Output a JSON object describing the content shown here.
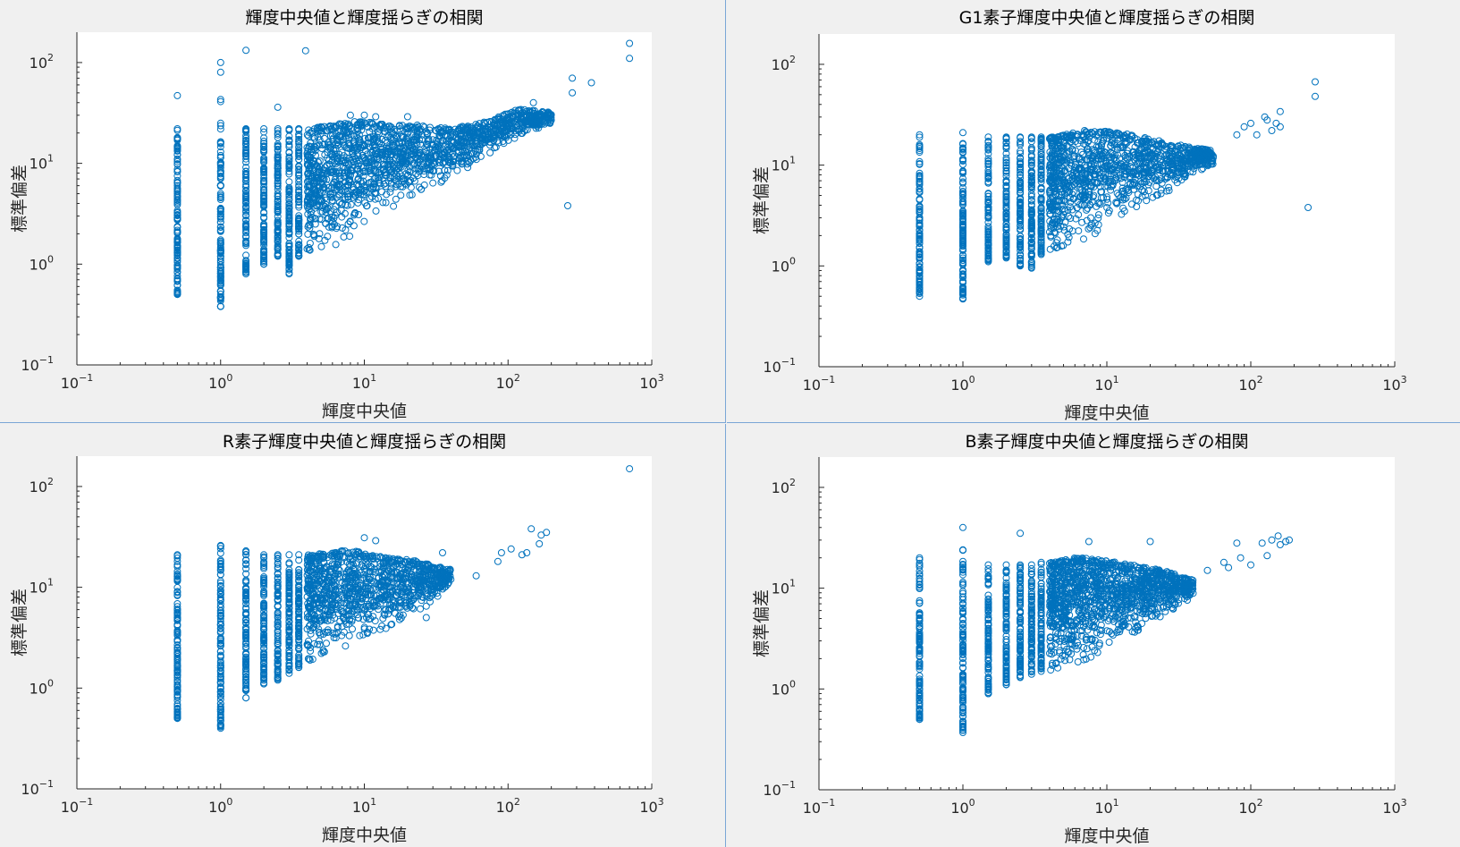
{
  "style": {
    "marker_color": "#0072bd",
    "plot_background": "#ffffff",
    "figure_background": "#f0f0f0"
  },
  "chart_data": [
    {
      "type": "scatter",
      "title": "輝度中央値と輝度揺らぎの相関",
      "xlabel": "輝度中央値",
      "ylabel": "標準偏差",
      "xscale": "log",
      "yscale": "log",
      "xlim": [
        0.1,
        1000
      ],
      "ylim": [
        0.1,
        200
      ],
      "grid": false,
      "x_ticks": [
        {
          "base": "10",
          "exp": "−1"
        },
        {
          "base": "10",
          "exp": "0"
        },
        {
          "base": "10",
          "exp": "1"
        },
        {
          "base": "10",
          "exp": "2"
        },
        {
          "base": "10",
          "exp": "3"
        }
      ],
      "y_ticks": [
        {
          "base": "10",
          "exp": "−1"
        },
        {
          "base": "10",
          "exp": "0"
        },
        {
          "base": "10",
          "exp": "1"
        },
        {
          "base": "10",
          "exp": "2"
        }
      ],
      "columns": [
        {
          "x": 0.5,
          "ymin": 0.5,
          "ymax": 22
        },
        {
          "x": 1.0,
          "ymin": 0.38,
          "ymax": 25
        },
        {
          "x": 1.5,
          "ymin": 0.8,
          "ymax": 22
        },
        {
          "x": 2.0,
          "ymin": 1.0,
          "ymax": 22
        },
        {
          "x": 2.5,
          "ymin": 1.2,
          "ymax": 22
        },
        {
          "x": 3.0,
          "ymin": 0.8,
          "ymax": 22
        },
        {
          "x": 3.5,
          "ymin": 1.2,
          "ymax": 22
        }
      ],
      "cloud": [
        {
          "x": 4,
          "ymin": 1.3,
          "ymax": 22
        },
        {
          "x": 6,
          "ymin": 1.5,
          "ymax": 24
        },
        {
          "x": 8,
          "ymin": 1.8,
          "ymax": 26
        },
        {
          "x": 10,
          "ymin": 2.5,
          "ymax": 26
        },
        {
          "x": 15,
          "ymin": 3.5,
          "ymax": 24
        },
        {
          "x": 25,
          "ymin": 5,
          "ymax": 24
        },
        {
          "x": 40,
          "ymin": 7,
          "ymax": 22
        },
        {
          "x": 70,
          "ymin": 12,
          "ymax": 26
        },
        {
          "x": 120,
          "ymin": 18,
          "ymax": 35
        },
        {
          "x": 200,
          "ymin": 25,
          "ymax": 32
        }
      ],
      "cloud_count": 1600,
      "points": [
        {
          "x": 0.5,
          "y": 47
        },
        {
          "x": 1.0,
          "y": 100
        },
        {
          "x": 1.0,
          "y": 80
        },
        {
          "x": 1.0,
          "y": 43
        },
        {
          "x": 1.0,
          "y": 41
        },
        {
          "x": 1.5,
          "y": 132
        },
        {
          "x": 3.9,
          "y": 131
        },
        {
          "x": 2.5,
          "y": 36
        },
        {
          "x": 8,
          "y": 30
        },
        {
          "x": 10,
          "y": 30
        },
        {
          "x": 12,
          "y": 29
        },
        {
          "x": 20,
          "y": 29
        },
        {
          "x": 260,
          "y": 3.8
        },
        {
          "x": 280,
          "y": 70
        },
        {
          "x": 280,
          "y": 50
        },
        {
          "x": 380,
          "y": 63
        },
        {
          "x": 700,
          "y": 155
        },
        {
          "x": 700,
          "y": 110
        },
        {
          "x": 150,
          "y": 40
        },
        {
          "x": 130,
          "y": 34
        }
      ]
    },
    {
      "type": "scatter",
      "title": "G1素子輝度中央値と輝度揺らぎの相関",
      "xlabel": "輝度中央値",
      "ylabel": "標準偏差",
      "xscale": "log",
      "yscale": "log",
      "xlim": [
        0.1,
        1000
      ],
      "ylim": [
        0.1,
        200
      ],
      "grid": false,
      "x_ticks": [
        {
          "base": "10",
          "exp": "−1"
        },
        {
          "base": "10",
          "exp": "0"
        },
        {
          "base": "10",
          "exp": "1"
        },
        {
          "base": "10",
          "exp": "2"
        },
        {
          "base": "10",
          "exp": "3"
        }
      ],
      "y_ticks": [
        {
          "base": "10",
          "exp": "−1"
        },
        {
          "base": "10",
          "exp": "0"
        },
        {
          "base": "10",
          "exp": "1"
        },
        {
          "base": "10",
          "exp": "2"
        }
      ],
      "columns": [
        {
          "x": 0.5,
          "ymin": 0.5,
          "ymax": 20
        },
        {
          "x": 1.0,
          "ymin": 0.47,
          "ymax": 21
        },
        {
          "x": 1.5,
          "ymin": 1.1,
          "ymax": 19
        },
        {
          "x": 2.0,
          "ymin": 1.2,
          "ymax": 19
        },
        {
          "x": 2.5,
          "ymin": 1.0,
          "ymax": 19
        },
        {
          "x": 3.0,
          "ymin": 0.95,
          "ymax": 19
        },
        {
          "x": 3.5,
          "ymin": 1.3,
          "ymax": 19
        }
      ],
      "cloud": [
        {
          "x": 4,
          "ymin": 1.4,
          "ymax": 19
        },
        {
          "x": 6,
          "ymin": 1.7,
          "ymax": 21
        },
        {
          "x": 8,
          "ymin": 2.0,
          "ymax": 22
        },
        {
          "x": 10,
          "ymin": 2.6,
          "ymax": 22
        },
        {
          "x": 15,
          "ymin": 3.5,
          "ymax": 20
        },
        {
          "x": 25,
          "ymin": 5,
          "ymax": 17
        },
        {
          "x": 40,
          "ymin": 8,
          "ymax": 15
        },
        {
          "x": 55,
          "ymin": 10,
          "ymax": 14
        }
      ],
      "cloud_count": 1200,
      "points": [
        {
          "x": 7,
          "y": 22
        },
        {
          "x": 13,
          "y": 19
        },
        {
          "x": 50,
          "y": 14
        },
        {
          "x": 80,
          "y": 20
        },
        {
          "x": 90,
          "y": 24
        },
        {
          "x": 100,
          "y": 26
        },
        {
          "x": 110,
          "y": 20
        },
        {
          "x": 125,
          "y": 30
        },
        {
          "x": 130,
          "y": 28
        },
        {
          "x": 140,
          "y": 22
        },
        {
          "x": 150,
          "y": 26
        },
        {
          "x": 160,
          "y": 34
        },
        {
          "x": 160,
          "y": 24
        },
        {
          "x": 250,
          "y": 3.8
        },
        {
          "x": 280,
          "y": 67
        },
        {
          "x": 280,
          "y": 48
        }
      ]
    },
    {
      "type": "scatter",
      "title": "R素子輝度中央値と輝度揺らぎの相関",
      "xlabel": "輝度中央値",
      "ylabel": "標準偏差",
      "xscale": "log",
      "yscale": "log",
      "xlim": [
        0.1,
        1000
      ],
      "ylim": [
        0.1,
        200
      ],
      "grid": false,
      "x_ticks": [
        {
          "base": "10",
          "exp": "−1"
        },
        {
          "base": "10",
          "exp": "0"
        },
        {
          "base": "10",
          "exp": "1"
        },
        {
          "base": "10",
          "exp": "2"
        },
        {
          "base": "10",
          "exp": "3"
        }
      ],
      "y_ticks": [
        {
          "base": "10",
          "exp": "−1"
        },
        {
          "base": "10",
          "exp": "0"
        },
        {
          "base": "10",
          "exp": "1"
        },
        {
          "base": "10",
          "exp": "2"
        }
      ],
      "columns": [
        {
          "x": 0.5,
          "ymin": 0.5,
          "ymax": 21
        },
        {
          "x": 1.0,
          "ymin": 0.4,
          "ymax": 26
        },
        {
          "x": 1.5,
          "ymin": 0.8,
          "ymax": 23
        },
        {
          "x": 2.0,
          "ymin": 1.1,
          "ymax": 21
        },
        {
          "x": 2.5,
          "ymin": 1.2,
          "ymax": 21
        },
        {
          "x": 3.0,
          "ymin": 1.4,
          "ymax": 21
        },
        {
          "x": 3.5,
          "ymin": 1.6,
          "ymax": 21
        }
      ],
      "cloud": [
        {
          "x": 4,
          "ymin": 1.8,
          "ymax": 21
        },
        {
          "x": 6,
          "ymin": 2.2,
          "ymax": 22
        },
        {
          "x": 8,
          "ymin": 2.6,
          "ymax": 24
        },
        {
          "x": 10,
          "ymin": 3.0,
          "ymax": 22
        },
        {
          "x": 15,
          "ymin": 4.0,
          "ymax": 20
        },
        {
          "x": 25,
          "ymin": 6,
          "ymax": 18
        },
        {
          "x": 40,
          "ymin": 10,
          "ymax": 15
        }
      ],
      "cloud_count": 1100,
      "points": [
        {
          "x": 10,
          "y": 31
        },
        {
          "x": 12,
          "y": 29
        },
        {
          "x": 27,
          "y": 5
        },
        {
          "x": 27,
          "y": 6.5
        },
        {
          "x": 35,
          "y": 22
        },
        {
          "x": 40,
          "y": 12
        },
        {
          "x": 60,
          "y": 13
        },
        {
          "x": 85,
          "y": 18
        },
        {
          "x": 90,
          "y": 22
        },
        {
          "x": 105,
          "y": 24
        },
        {
          "x": 125,
          "y": 21
        },
        {
          "x": 135,
          "y": 22
        },
        {
          "x": 145,
          "y": 38
        },
        {
          "x": 165,
          "y": 27
        },
        {
          "x": 170,
          "y": 33
        },
        {
          "x": 185,
          "y": 35
        },
        {
          "x": 700,
          "y": 150
        }
      ]
    },
    {
      "type": "scatter",
      "title": "B素子輝度中央値と輝度揺らぎの相関",
      "xlabel": "輝度中央値",
      "ylabel": "標準偏差",
      "xscale": "log",
      "yscale": "log",
      "xlim": [
        0.1,
        1000
      ],
      "ylim": [
        0.1,
        200
      ],
      "grid": false,
      "x_ticks": [
        {
          "base": "10",
          "exp": "−1"
        },
        {
          "base": "10",
          "exp": "0"
        },
        {
          "base": "10",
          "exp": "1"
        },
        {
          "base": "10",
          "exp": "2"
        },
        {
          "base": "10",
          "exp": "3"
        }
      ],
      "y_ticks": [
        {
          "base": "10",
          "exp": "−1"
        },
        {
          "base": "10",
          "exp": "0"
        },
        {
          "base": "10",
          "exp": "1"
        },
        {
          "base": "10",
          "exp": "2"
        }
      ],
      "columns": [
        {
          "x": 0.5,
          "ymin": 0.5,
          "ymax": 20
        },
        {
          "x": 1.0,
          "ymin": 0.37,
          "ymax": 24
        },
        {
          "x": 1.5,
          "ymin": 0.9,
          "ymax": 17
        },
        {
          "x": 2.0,
          "ymin": 1.1,
          "ymax": 17
        },
        {
          "x": 2.5,
          "ymin": 1.3,
          "ymax": 17
        },
        {
          "x": 3.0,
          "ymin": 1.4,
          "ymax": 17
        },
        {
          "x": 3.5,
          "ymin": 1.5,
          "ymax": 18
        }
      ],
      "cloud": [
        {
          "x": 4,
          "ymin": 1.5,
          "ymax": 18
        },
        {
          "x": 6,
          "ymin": 1.6,
          "ymax": 20
        },
        {
          "x": 8,
          "ymin": 2.0,
          "ymax": 20
        },
        {
          "x": 10,
          "ymin": 2.5,
          "ymax": 19
        },
        {
          "x": 15,
          "ymin": 3.5,
          "ymax": 17
        },
        {
          "x": 25,
          "ymin": 5.5,
          "ymax": 15
        },
        {
          "x": 40,
          "ymin": 8,
          "ymax": 12
        }
      ],
      "cloud_count": 1300,
      "points": [
        {
          "x": 1.0,
          "y": 40
        },
        {
          "x": 2.5,
          "y": 35
        },
        {
          "x": 7.5,
          "y": 29
        },
        {
          "x": 20,
          "y": 29
        },
        {
          "x": 50,
          "y": 15
        },
        {
          "x": 65,
          "y": 18
        },
        {
          "x": 70,
          "y": 16
        },
        {
          "x": 80,
          "y": 28
        },
        {
          "x": 85,
          "y": 20
        },
        {
          "x": 100,
          "y": 17
        },
        {
          "x": 120,
          "y": 28
        },
        {
          "x": 130,
          "y": 21
        },
        {
          "x": 140,
          "y": 30
        },
        {
          "x": 155,
          "y": 33
        },
        {
          "x": 160,
          "y": 27
        },
        {
          "x": 175,
          "y": 29
        },
        {
          "x": 185,
          "y": 30
        }
      ]
    }
  ]
}
